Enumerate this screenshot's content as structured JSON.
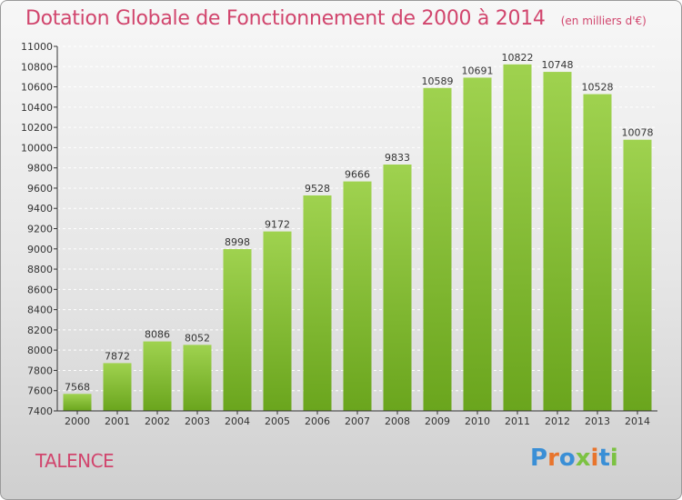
{
  "header": {
    "title": "Dotation Globale de Fonctionnement de 2000 à 2014",
    "subtitle": "(en milliers d'€)"
  },
  "footer": {
    "city": "TALENCE",
    "logo_text": "Proxiti",
    "logo_colors": [
      "#3a8fd6",
      "#e8742c",
      "#3a8fd6",
      "#7cc242",
      "#e8742c",
      "#3a8fd6",
      "#7cc242"
    ]
  },
  "colors": {
    "bar_light": "#9fd24f",
    "bar_dark": "#6aa51d",
    "axis": "#333333",
    "grid": "#ffffff",
    "accent": "#d1456d"
  },
  "chart_data": {
    "type": "bar",
    "title": "Dotation Globale de Fonctionnement de 2000 à 2014",
    "subtitle": "(en milliers d'€)",
    "xlabel": "",
    "ylabel": "",
    "categories": [
      "2000",
      "2001",
      "2002",
      "2003",
      "2004",
      "2005",
      "2006",
      "2007",
      "2008",
      "2009",
      "2010",
      "2011",
      "2012",
      "2013",
      "2014"
    ],
    "values": [
      7568,
      7872,
      8086,
      8052,
      8998,
      9172,
      9528,
      9666,
      9833,
      10589,
      10691,
      10822,
      10748,
      10528,
      10078
    ],
    "ylim": [
      7400,
      11000
    ],
    "yticks": [
      7400,
      7600,
      7800,
      8000,
      8200,
      8400,
      8600,
      8800,
      9000,
      9200,
      9400,
      9600,
      9800,
      10000,
      10200,
      10400,
      10600,
      10800,
      11000
    ],
    "grid": true,
    "data_labels": true
  }
}
